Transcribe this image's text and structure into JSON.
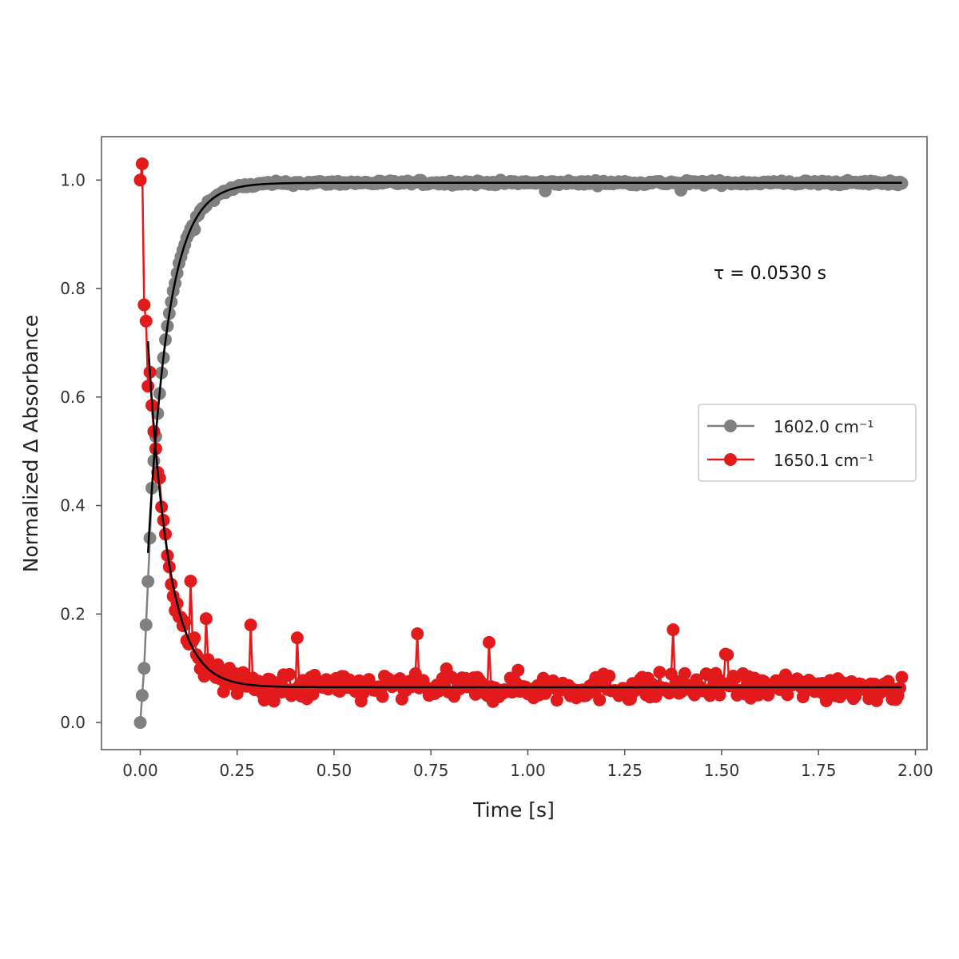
{
  "chart_data": {
    "type": "scatter",
    "title": "",
    "xlabel": "Time [s]",
    "ylabel": "Normalized Δ Absorbance",
    "xlim": [
      -0.1,
      2.03
    ],
    "ylim": [
      -0.05,
      1.08
    ],
    "xticks": [
      "0.00",
      "0.25",
      "0.50",
      "0.75",
      "1.00",
      "1.25",
      "1.50",
      "1.75",
      "2.00"
    ],
    "yticks": [
      "0.0",
      "0.2",
      "0.4",
      "0.6",
      "0.8",
      "1.0"
    ],
    "grid": false,
    "legend_position": "center-right",
    "annotation": "τ = 0.0530 s",
    "series": [
      {
        "name": "1602.0 cm⁻¹",
        "color": "#808080",
        "marker": "circle",
        "x_start": 0.0,
        "x_step": 0.005,
        "x_end": 1.965,
        "model": "rise",
        "amplitude": 0.995,
        "tau": 0.053,
        "noise": 0.004,
        "initial_points": [
          [
            0.0,
            0.0
          ],
          [
            0.005,
            0.05
          ],
          [
            0.01,
            0.1
          ],
          [
            0.015,
            0.18
          ],
          [
            0.02,
            0.26
          ],
          [
            0.025,
            0.34
          ]
        ]
      },
      {
        "name": "1650.1 cm⁻¹",
        "color": "#e31a1c",
        "marker": "circle",
        "x_start": 0.0,
        "x_step": 0.005,
        "x_end": 1.965,
        "model": "decay",
        "offset": 0.065,
        "amplitude": 0.93,
        "tau": 0.053,
        "noise": 0.025,
        "initial_points": [
          [
            0.0,
            1.0
          ],
          [
            0.005,
            1.03
          ],
          [
            0.01,
            0.77
          ],
          [
            0.015,
            0.74
          ],
          [
            0.02,
            0.62
          ]
        ]
      }
    ],
    "fits": [
      {
        "model": "rise",
        "amplitude": 0.995,
        "tau": 0.053,
        "x_start": 0.02,
        "x_end": 1.965,
        "color": "#000000"
      },
      {
        "model": "decay",
        "offset": 0.065,
        "amplitude": 0.93,
        "tau": 0.053,
        "x_start": 0.02,
        "x_end": 1.965,
        "color": "#000000"
      }
    ]
  }
}
